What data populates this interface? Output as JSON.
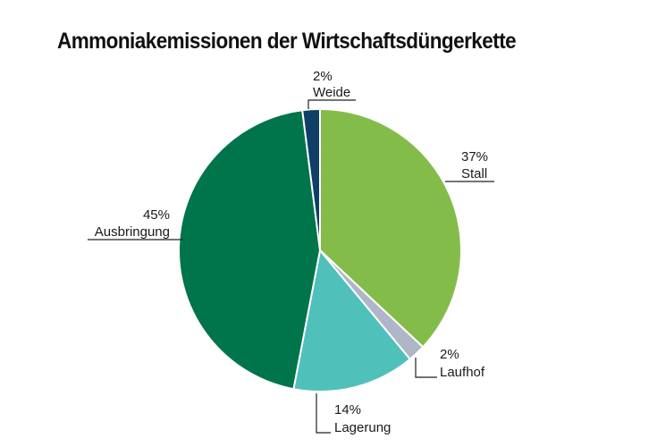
{
  "chart_data": {
    "type": "pie",
    "title": "Ammoniakemissionen der Wirtschaftsdüngerkette",
    "start": "top",
    "direction": "clockwise",
    "slices": [
      {
        "label": "Stall",
        "value": 37,
        "display": "37%",
        "color": "#84bc4a"
      },
      {
        "label": "Laufhof",
        "value": 2,
        "display": "2%",
        "color": "#aeb6c8"
      },
      {
        "label": "Lagerung",
        "value": 14,
        "display": "14%",
        "color": "#50c0bb"
      },
      {
        "label": "Ausbringung",
        "value": 45,
        "display": "45%",
        "color": "#00744a"
      },
      {
        "label": "Weide",
        "value": 2,
        "display": "2%",
        "color": "#0f3f66"
      }
    ]
  }
}
